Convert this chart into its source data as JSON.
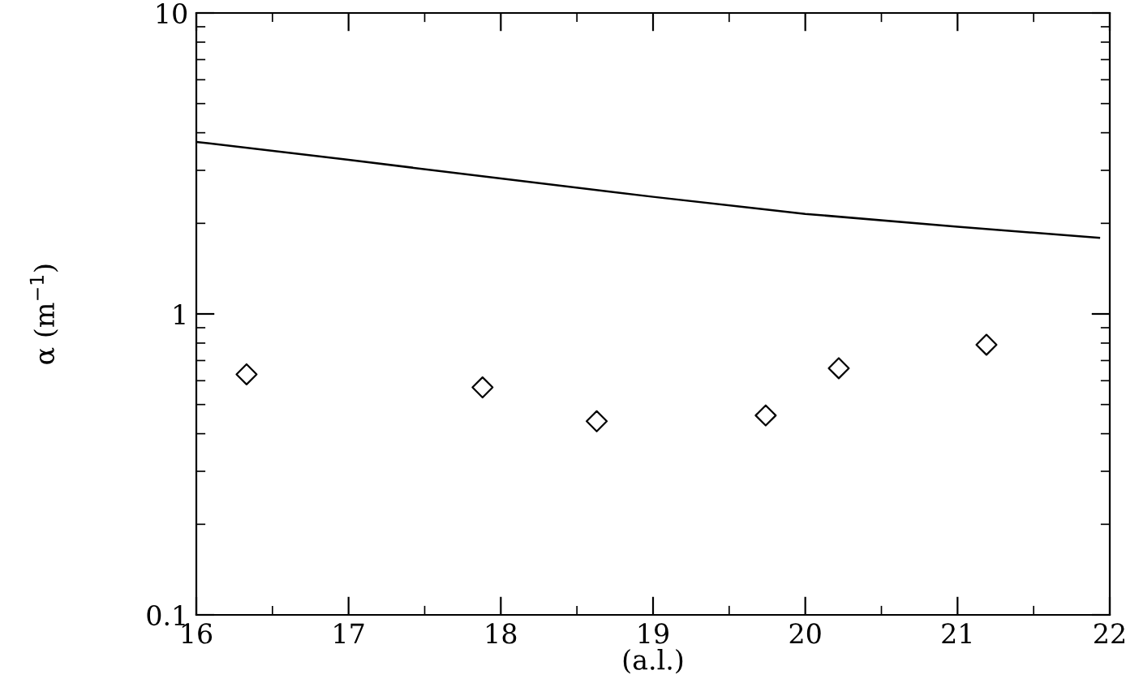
{
  "chart_data": {
    "type": "scatter",
    "xlabel": "(a.l.)",
    "ylabel": "α (m$^{−1}$)",
    "log": "y",
    "grid": false,
    "xlim": [
      16,
      22
    ],
    "ylim": [
      0.1,
      10
    ],
    "xticks": [
      16,
      17,
      18,
      19,
      20,
      21,
      22
    ],
    "yticks": [
      0.1,
      1,
      10
    ],
    "series": [
      {
        "type": "line",
        "marker": "none",
        "color": "#000000",
        "x": [
          16,
          17,
          18,
          19,
          20,
          21,
          21.93
        ],
        "values": [
          3.73,
          3.25,
          2.82,
          2.45,
          2.15,
          1.95,
          1.79
        ]
      },
      {
        "marker": "diamond",
        "color": "#000000",
        "x": [
          16.33,
          17.88,
          18.63,
          19.74,
          20.22,
          21.19
        ],
        "values": [
          0.63,
          0.57,
          0.44,
          0.46,
          0.66,
          0.79
        ]
      }
    ]
  }
}
